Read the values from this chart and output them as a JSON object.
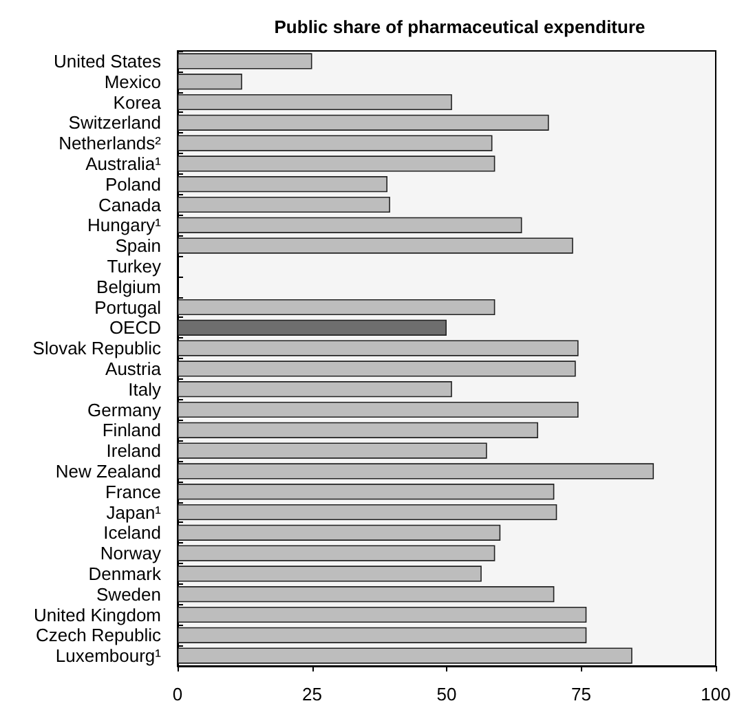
{
  "chart_data": {
    "type": "bar",
    "orientation": "horizontal",
    "title": "Public share of pharmaceutical expenditure",
    "categories": [
      "United States",
      "Mexico",
      "Korea",
      "Switzerland",
      "Netherlands²",
      "Australia¹",
      "Poland",
      "Canada",
      "Hungary¹",
      "Spain",
      "Turkey",
      "Belgium",
      "Portugal",
      "OECD",
      "Slovak Republic",
      "Austria",
      "Italy",
      "Germany",
      "Finland",
      "Ireland",
      "New Zealand",
      "France",
      "Japan¹",
      "Iceland",
      "Norway",
      "Denmark",
      "Sweden",
      "United Kingdom",
      "Czech Republic",
      "Luxembourg¹"
    ],
    "values": [
      25,
      12,
      51,
      69,
      58.5,
      59,
      39,
      39.5,
      64,
      73.5,
      null,
      null,
      59,
      50,
      74.5,
      74,
      51,
      74.5,
      67,
      57.5,
      88.5,
      70,
      70.5,
      60,
      59,
      56.5,
      70,
      76,
      76,
      84.5
    ],
    "colors": [
      "#bdbdbd",
      "#bdbdbd",
      "#bdbdbd",
      "#bdbdbd",
      "#bdbdbd",
      "#bdbdbd",
      "#bdbdbd",
      "#bdbdbd",
      "#bdbdbd",
      "#bdbdbd",
      "#bdbdbd",
      "#bdbdbd",
      "#bdbdbd",
      "#6e6e6e",
      "#bdbdbd",
      "#bdbdbd",
      "#bdbdbd",
      "#bdbdbd",
      "#bdbdbd",
      "#bdbdbd",
      "#bdbdbd",
      "#bdbdbd",
      "#bdbdbd",
      "#bdbdbd",
      "#bdbdbd",
      "#bdbdbd",
      "#bdbdbd",
      "#bdbdbd",
      "#bdbdbd",
      "#bdbdbd"
    ],
    "xlim": [
      0,
      100
    ],
    "xticks": [
      0,
      25,
      50,
      75,
      100
    ],
    "grid": false
  }
}
